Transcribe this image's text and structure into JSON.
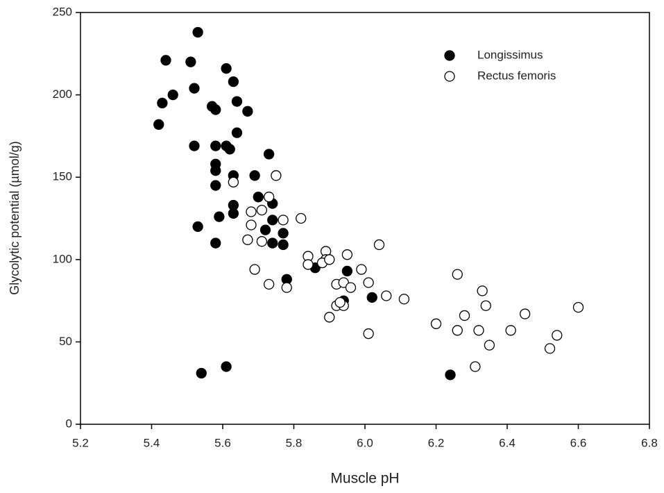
{
  "chart_data": {
    "type": "scatter",
    "xlabel": "Muscle pH",
    "ylabel": "Glycolytic potential (µmol/g)",
    "xlim": [
      5.2,
      6.8
    ],
    "xticks": [
      5.2,
      5.4,
      5.6,
      5.8,
      {
        "value": 6,
        "label": "6.0"
      },
      6.2,
      6.4,
      6.6,
      6.8
    ],
    "ylim": [
      0,
      250
    ],
    "yticks": [
      0,
      50,
      100,
      150,
      200,
      250
    ],
    "legend": "upper right",
    "series": [
      {
        "name": "Longissimus",
        "color": "#000000",
        "filled": true,
        "x": [
          5.53,
          5.44,
          5.51,
          5.61,
          5.52,
          5.46,
          5.63,
          5.43,
          5.64,
          5.57,
          5.58,
          5.67,
          5.42,
          5.64,
          5.52,
          5.58,
          5.61,
          5.62,
          5.73,
          5.58,
          5.58,
          5.63,
          5.69,
          5.58,
          5.7,
          5.74,
          5.63,
          5.63,
          5.59,
          5.53,
          5.74,
          5.72,
          5.77,
          5.74,
          5.77,
          5.58,
          5.78,
          5.86,
          5.95,
          5.94,
          6.02,
          5.54,
          5.61,
          6.24
        ],
        "values": [
          238,
          221,
          220,
          216,
          204,
          200,
          208,
          195,
          196,
          193,
          191,
          190,
          182,
          177,
          169,
          169,
          169,
          167,
          164,
          158,
          154,
          151,
          151,
          145,
          138,
          134,
          133,
          128,
          126,
          120,
          124,
          118,
          116,
          110,
          109,
          110,
          88,
          95,
          93,
          75,
          77,
          31,
          35,
          30
        ]
      },
      {
        "name": "Rectus femoris",
        "color": "#000000",
        "filled": false,
        "x": [
          5.63,
          5.75,
          5.73,
          5.68,
          5.71,
          5.77,
          5.82,
          5.68,
          5.67,
          5.71,
          5.69,
          5.84,
          5.84,
          5.89,
          5.89,
          5.88,
          5.9,
          5.95,
          6.04,
          5.99,
          5.73,
          5.78,
          5.92,
          5.94,
          5.96,
          6.01,
          6.06,
          6.11,
          5.92,
          5.94,
          5.93,
          5.9,
          6.01,
          6.2,
          6.26,
          6.33,
          6.34,
          6.28,
          6.26,
          6.32,
          6.41,
          6.45,
          6.35,
          6.31,
          6.54,
          6.52,
          6.6
        ],
        "values": [
          147,
          151,
          138,
          129,
          130,
          124,
          125,
          121,
          112,
          111,
          94,
          102,
          97,
          105,
          100,
          98,
          100,
          103,
          109,
          94,
          85,
          83,
          85,
          86,
          83,
          86,
          78,
          76,
          72,
          72,
          74,
          65,
          55,
          61,
          91,
          81,
          72,
          66,
          57,
          57,
          57,
          67,
          48,
          35,
          54,
          46,
          71
        ]
      }
    ]
  }
}
